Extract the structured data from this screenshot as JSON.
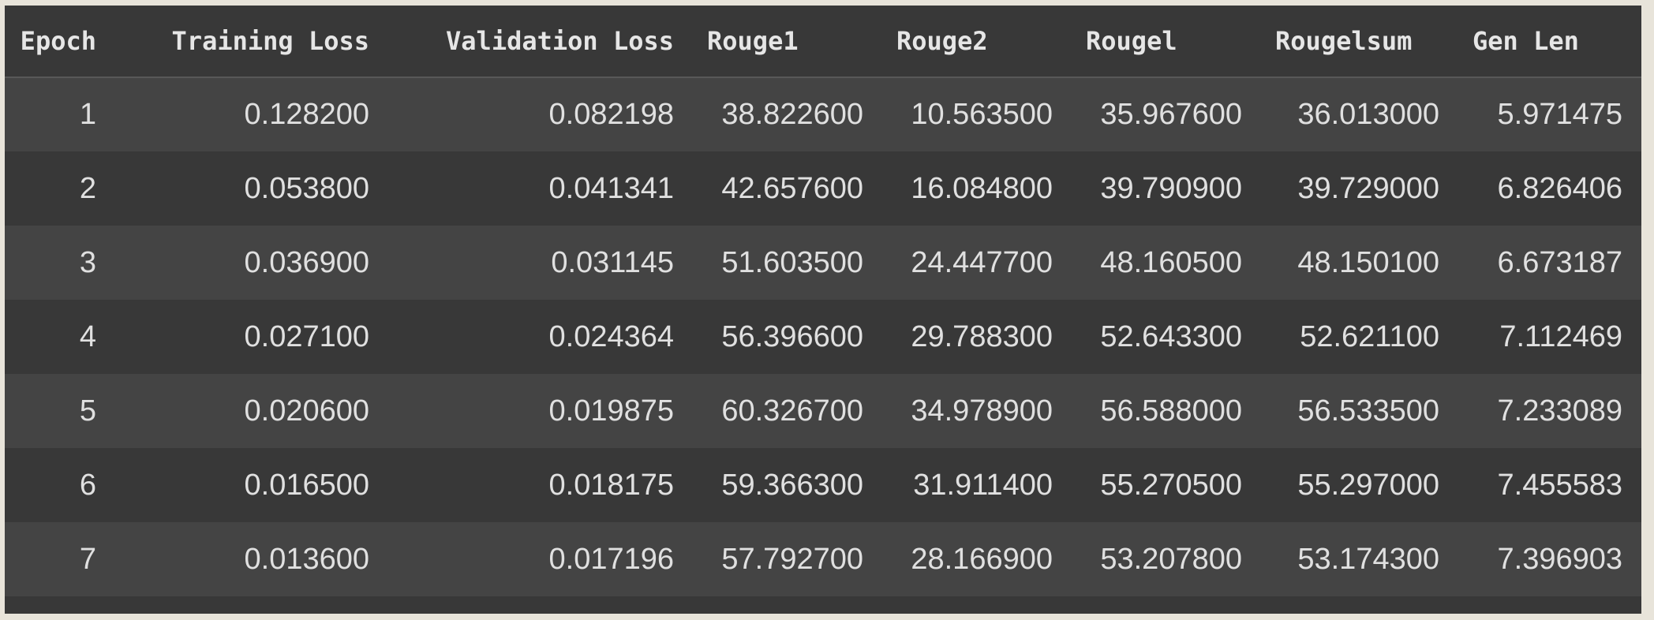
{
  "table": {
    "columns": [
      "Epoch",
      "Training Loss",
      "Validation Loss",
      "Rouge1",
      "Rouge2",
      "Rougel",
      "Rougelsum",
      "Gen Len"
    ],
    "rows": [
      [
        "1",
        "0.128200",
        "0.082198",
        "38.822600",
        "10.563500",
        "35.967600",
        "36.013000",
        "5.971475"
      ],
      [
        "2",
        "0.053800",
        "0.041341",
        "42.657600",
        "16.084800",
        "39.790900",
        "39.729000",
        "6.826406"
      ],
      [
        "3",
        "0.036900",
        "0.031145",
        "51.603500",
        "24.447700",
        "48.160500",
        "48.150100",
        "6.673187"
      ],
      [
        "4",
        "0.027100",
        "0.024364",
        "56.396600",
        "29.788300",
        "52.643300",
        "52.621100",
        "7.112469"
      ],
      [
        "5",
        "0.020600",
        "0.019875",
        "60.326700",
        "34.978900",
        "56.588000",
        "56.533500",
        "7.233089"
      ],
      [
        "6",
        "0.016500",
        "0.018175",
        "59.366300",
        "31.911400",
        "55.270500",
        "55.297000",
        "7.455583"
      ],
      [
        "7",
        "0.013600",
        "0.017196",
        "57.792700",
        "28.166900",
        "53.207800",
        "53.174300",
        "7.396903"
      ]
    ]
  },
  "colors": {
    "header_bg": "#383838",
    "row_odd_bg": "#444444",
    "row_even_bg": "#383838",
    "text": "#e0e0e0"
  }
}
